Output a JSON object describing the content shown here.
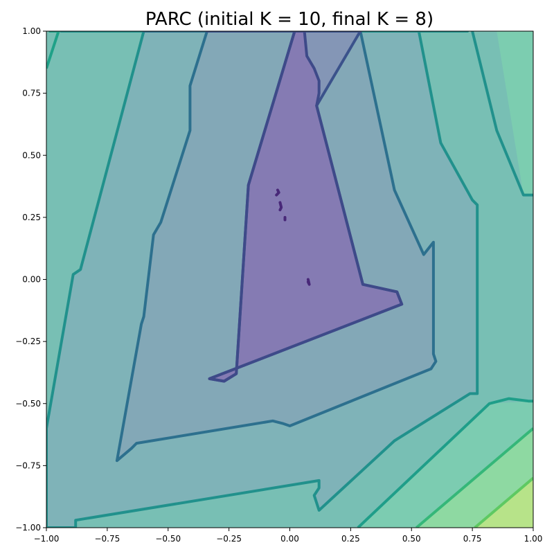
{
  "chart_data": {
    "type": "contour",
    "title": "PARC (initial K = 10, final K = 8)",
    "xlabel": "",
    "ylabel": "",
    "xlim": [
      -1.0,
      1.0
    ],
    "ylim": [
      -1.0,
      1.0
    ],
    "grid": false,
    "xticks": [
      -1.0,
      -0.75,
      -0.5,
      -0.25,
      0.0,
      0.25,
      0.5,
      0.75,
      1.0
    ],
    "yticks": [
      -1.0,
      -0.75,
      -0.5,
      -0.25,
      0.0,
      0.25,
      0.5,
      0.75,
      1.0
    ],
    "xtick_labels": [
      "−1.00",
      "−0.75",
      "−0.50",
      "−0.25",
      "0.00",
      "0.25",
      "0.50",
      "0.75",
      "1.00"
    ],
    "ytick_labels": [
      "−1.00",
      "−0.75",
      "−0.50",
      "−0.25",
      "0.00",
      "0.25",
      "0.50",
      "0.75",
      "1.00"
    ],
    "background_color": "#78bfb4",
    "regions": [
      {
        "level": 1,
        "fill": "#8577b3",
        "opacity": 0.85,
        "stroke": "#3e4a89",
        "points": [
          [
            0.02,
            1.0
          ],
          [
            0.06,
            1.0
          ],
          [
            0.07,
            0.9
          ],
          [
            0.1,
            0.85
          ],
          [
            0.12,
            0.8
          ],
          [
            0.12,
            0.75
          ],
          [
            0.11,
            0.7
          ],
          [
            0.3,
            -0.02
          ],
          [
            0.44,
            -0.05
          ],
          [
            0.46,
            -0.1
          ],
          [
            -0.33,
            -0.4
          ],
          [
            -0.27,
            -0.41
          ],
          [
            -0.22,
            -0.38
          ],
          [
            -0.17,
            0.38
          ]
        ]
      },
      {
        "level": 2,
        "fill": "#8493b6",
        "opacity": 0.9,
        "stroke": "#3b528b",
        "points": [
          [
            -0.34,
            1.0
          ],
          [
            0.02,
            1.0
          ],
          [
            -0.17,
            0.38
          ],
          [
            -0.22,
            -0.38
          ],
          [
            -0.27,
            -0.41
          ],
          [
            -0.33,
            -0.4
          ],
          [
            0.46,
            -0.1
          ],
          [
            0.44,
            -0.05
          ],
          [
            0.3,
            -0.02
          ],
          [
            0.11,
            0.7
          ],
          [
            0.29,
            1.0
          ]
        ]
      },
      {
        "level": 3,
        "fill": "#84a6b7",
        "opacity": 0.9,
        "stroke": "#2d708e",
        "points": [
          [
            -0.6,
            1.0
          ],
          [
            -0.34,
            1.0
          ],
          [
            -0.41,
            0.78
          ],
          [
            -0.41,
            0.6
          ],
          [
            -0.53,
            0.23
          ],
          [
            -0.56,
            0.18
          ],
          [
            -0.6,
            -0.15
          ],
          [
            -0.61,
            -0.18
          ],
          [
            -0.71,
            -0.73
          ],
          [
            -0.65,
            -0.68
          ],
          [
            -0.63,
            -0.66
          ],
          [
            -0.07,
            -0.57
          ],
          [
            -0.03,
            -0.58
          ],
          [
            0.0,
            -0.59
          ],
          [
            0.58,
            -0.36
          ],
          [
            0.6,
            -0.33
          ],
          [
            0.59,
            -0.3
          ],
          [
            0.59,
            0.15
          ],
          [
            0.55,
            0.1
          ],
          [
            0.43,
            0.36
          ],
          [
            0.29,
            1.0
          ]
        ]
      },
      {
        "level": 4,
        "fill": "#7fb1b8",
        "opacity": 0.9,
        "stroke": "#21918c",
        "points": [
          [
            -0.94,
            1.0
          ],
          [
            -0.6,
            1.0
          ],
          [
            -0.86,
            0.04
          ],
          [
            -0.89,
            0.02
          ],
          [
            -1.0,
            -0.6
          ],
          [
            -1.0,
            -1.0
          ],
          [
            -0.88,
            -1.0
          ],
          [
            -0.88,
            -0.97
          ],
          [
            0.12,
            -0.81
          ],
          [
            0.12,
            -0.84
          ],
          [
            0.1,
            -0.87
          ],
          [
            0.12,
            -0.93
          ],
          [
            0.43,
            -0.65
          ],
          [
            0.74,
            -0.46
          ],
          [
            0.77,
            -0.46
          ],
          [
            0.77,
            0.3
          ],
          [
            0.75,
            0.32
          ],
          [
            0.62,
            0.55
          ],
          [
            0.53,
            1.0
          ],
          [
            0.73,
            1.0
          ]
        ]
      }
    ],
    "boundaries": [
      {
        "stroke": "#1fa188",
        "points": [
          [
            -0.99,
            1.0
          ],
          [
            -0.95,
            1.0
          ],
          [
            -1.0,
            0.85
          ]
        ]
      },
      {
        "stroke": "#21918c",
        "points": [
          [
            0.75,
            1.0
          ],
          [
            0.85,
            0.6
          ],
          [
            0.96,
            0.34
          ],
          [
            1.0,
            0.34
          ]
        ]
      },
      {
        "stroke": "#1f9e89",
        "points": [
          [
            0.28,
            -1.0
          ],
          [
            0.82,
            -0.5
          ],
          [
            0.9,
            -0.48
          ],
          [
            0.98,
            -0.49
          ],
          [
            1.0,
            -0.49
          ]
        ]
      },
      {
        "stroke": "#35b779",
        "points": [
          [
            0.52,
            -1.0
          ],
          [
            1.0,
            -0.6
          ]
        ]
      },
      {
        "stroke": "#5ec962",
        "points": [
          [
            0.76,
            -1.0
          ],
          [
            1.0,
            -0.8
          ]
        ]
      }
    ],
    "corner_fills": [
      {
        "fill": "#7ccdb0",
        "opacity": 0.95,
        "points": [
          [
            0.85,
            1.0
          ],
          [
            1.0,
            1.0
          ],
          [
            1.0,
            0.34
          ],
          [
            0.96,
            0.34
          ]
        ]
      },
      {
        "fill": "#7ccdb0",
        "opacity": 0.9,
        "points": [
          [
            0.28,
            -1.0
          ],
          [
            1.0,
            -1.0
          ],
          [
            1.0,
            -0.49
          ],
          [
            0.82,
            -0.5
          ]
        ]
      },
      {
        "fill": "#8fd9a1",
        "opacity": 0.95,
        "points": [
          [
            0.52,
            -1.0
          ],
          [
            1.0,
            -1.0
          ],
          [
            1.0,
            -0.6
          ]
        ]
      },
      {
        "fill": "#b7e389",
        "opacity": 1.0,
        "points": [
          [
            0.76,
            -1.0
          ],
          [
            1.0,
            -1.0
          ],
          [
            1.0,
            -0.8
          ]
        ]
      }
    ],
    "minima_marks": [
      {
        "color": "#482878",
        "points": [
          [
            -0.055,
            0.34
          ],
          [
            -0.045,
            0.35
          ],
          [
            -0.05,
            0.36
          ]
        ]
      },
      {
        "color": "#482878",
        "points": [
          [
            -0.04,
            0.31
          ],
          [
            -0.035,
            0.29
          ],
          [
            -0.04,
            0.28
          ]
        ]
      },
      {
        "color": "#482878",
        "points": [
          [
            -0.02,
            0.25
          ],
          [
            -0.02,
            0.24
          ]
        ]
      },
      {
        "color": "#482878",
        "points": [
          [
            0.075,
            -0.01
          ],
          [
            0.08,
            -0.02
          ],
          [
            0.075,
            0.0
          ]
        ]
      }
    ]
  }
}
